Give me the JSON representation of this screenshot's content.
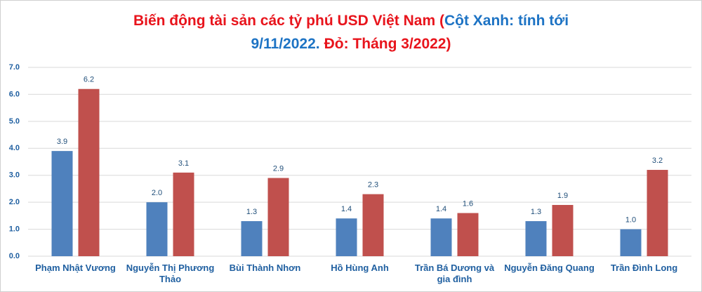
{
  "chart_data": {
    "type": "bar",
    "title_segments": [
      {
        "text": "Biến động tài sản các tỷ phú USD Việt Nam (",
        "color": "#e8141c"
      },
      {
        "text": "Cột Xanh: tính tới",
        "color": "#1d73c4"
      },
      {
        "text": "9/11/2022.",
        "color": "#1d73c4"
      },
      {
        "text": "Đỏ: Tháng 3/2022)",
        "color": "#e8141c"
      }
    ],
    "categories": [
      "Phạm Nhật Vương",
      "Nguyễn Thị Phương Thảo",
      "Bùi Thành Nhơn",
      "Hồ Hùng Anh",
      "Trần Bá Dương và gia đình",
      "Nguyễn Đăng Quang",
      "Trần Đình Long"
    ],
    "series": [
      {
        "color": "#4f81bd",
        "values": [
          3.9,
          2.0,
          1.3,
          1.4,
          1.4,
          1.3,
          1.0
        ],
        "value_labels": [
          "3.9",
          "2.0",
          "1.3",
          "1.4",
          "1.4",
          "1.3",
          "1.0"
        ]
      },
      {
        "color": "#c0504d",
        "values": [
          6.2,
          3.1,
          2.9,
          2.3,
          1.6,
          1.9,
          3.2
        ],
        "value_labels": [
          "6.2",
          "3.1",
          "2.9",
          "2.3",
          "1.6",
          "1.9",
          "3.2"
        ]
      }
    ],
    "ylim": [
      0,
      7
    ],
    "yticks": [
      {
        "value": 0,
        "label": "0.0"
      },
      {
        "value": 1,
        "label": "1.0"
      },
      {
        "value": 2,
        "label": "2.0"
      },
      {
        "value": 3,
        "label": "3.0"
      },
      {
        "value": 4,
        "label": "4.0"
      },
      {
        "value": 5,
        "label": "5.0"
      },
      {
        "value": 6,
        "label": "6.0"
      },
      {
        "value": 7,
        "label": "7.0"
      }
    ],
    "grid": true
  }
}
